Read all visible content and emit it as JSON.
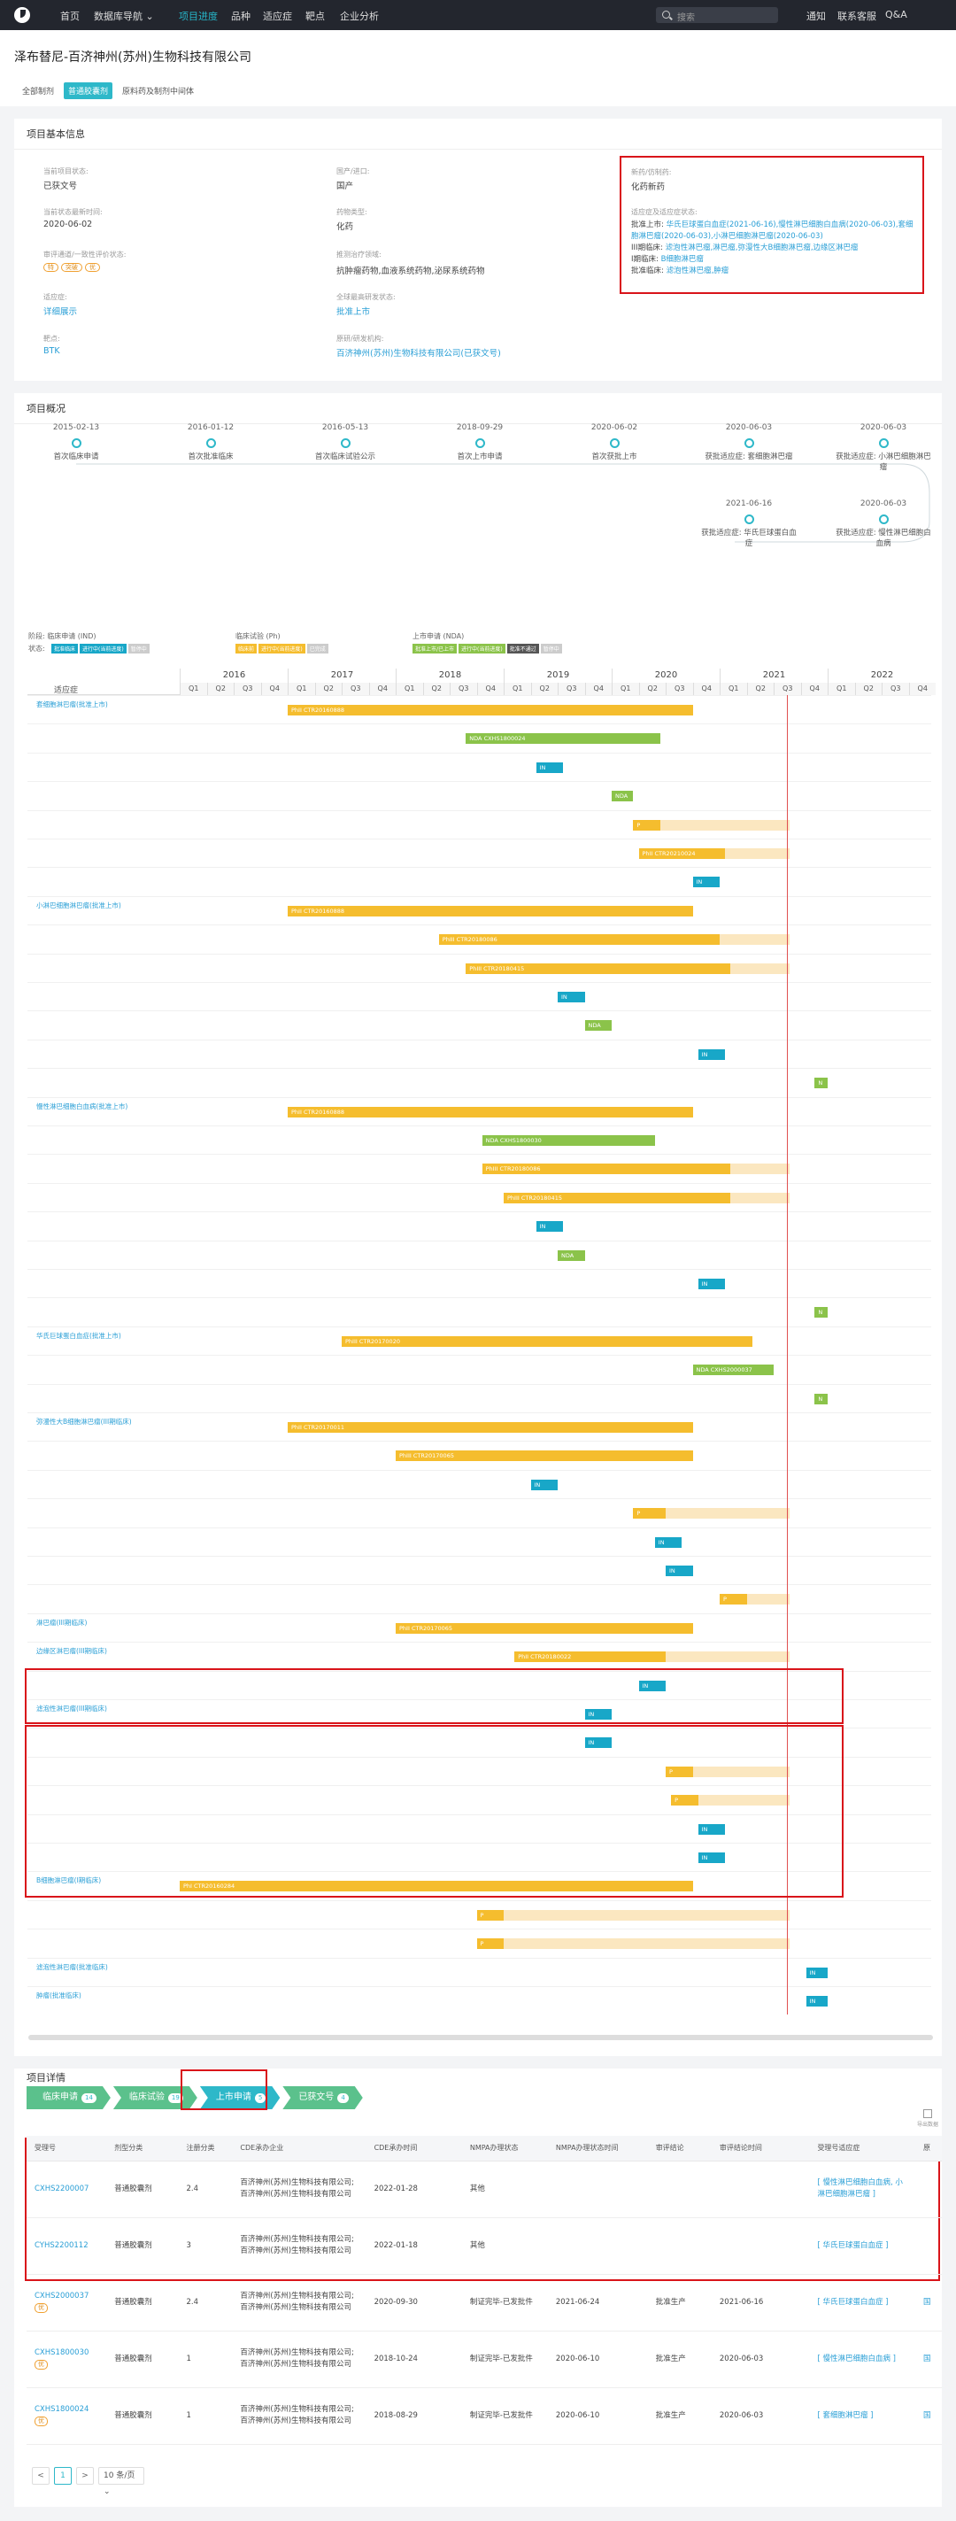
{
  "nav": {
    "items": [
      "首页",
      "数据库导航",
      "项目进度",
      "品种",
      "适应症",
      "靶点",
      "企业分析"
    ],
    "search_placeholder": "搜索",
    "right": [
      "通知",
      "联系客服",
      "Q&A"
    ]
  },
  "title": "泽布替尼-百济神州(苏州)生物科技有限公司",
  "tabs": [
    "全部制剂",
    "普通胶囊剂",
    "原料药及制剂中间体"
  ],
  "basic": {
    "heading": "项目基本信息",
    "f": [
      {
        "l": "当前项目状态:",
        "v": "已获文号"
      },
      {
        "l": "国产/进口:",
        "v": "国产"
      },
      {
        "l": "当前状态最新时间:",
        "v": "2020-06-02"
      },
      {
        "l": "药物类型:",
        "v": "化药"
      },
      {
        "l": "审评通道/一致性评价状态:",
        "tags": [
          "特",
          "突破",
          "优"
        ]
      },
      {
        "l": "推测治疗领域:",
        "v": "抗肿瘤药物,血液系统药物,泌尿系统药物"
      },
      {
        "l": "适应症:",
        "v": "详细展示"
      },
      {
        "l": "全球最高研发状态:",
        "v": "批准上市"
      },
      {
        "l": "靶点:",
        "v": "BTK"
      },
      {
        "l": "原研/研发机构:",
        "v": "百济神州(苏州)生物科技有限公司(已获文号)"
      }
    ],
    "right": {
      "l1": "新药/仿制药:",
      "v1": "化药新药",
      "l2": "适应症及适应症状态:",
      "lines": [
        [
          "批准上市:",
          "华氏巨球蛋白血症(2021-06-16),慢性淋巴细胞白血病(2020-06-03),套细胞淋巴瘤(2020-06-03),小淋巴细胞淋巴瘤(2020-06-03)"
        ],
        [
          "III期临床:",
          "滤泡性淋巴瘤,淋巴瘤,弥漫性大B细胞淋巴瘤,边缘区淋巴瘤"
        ],
        [
          "I期临床:",
          "B细胞淋巴瘤"
        ],
        [
          "批准临床:",
          "滤泡性淋巴瘤,肿瘤"
        ]
      ]
    }
  },
  "overview": {
    "heading": "项目概况",
    "timeline": [
      {
        "date": "2015-02-13",
        "label": "首次临床申请"
      },
      {
        "date": "2016-01-12",
        "label": "首次批准临床"
      },
      {
        "date": "2016-05-13",
        "label": "首次临床试验公示"
      },
      {
        "date": "2018-09-29",
        "label": "首次上市申请"
      },
      {
        "date": "2020-06-02",
        "label": "首次获批上市"
      },
      {
        "date": "2020-06-03",
        "label": "获批适应症: 套细胞淋巴瘤"
      },
      {
        "date": "2020-06-03",
        "label": "获批适应症: 小淋巴细胞淋巴瘤"
      },
      {
        "date": "2021-06-16",
        "label": "获批适应症: 华氏巨球蛋白血症"
      },
      {
        "date": "2020-06-03",
        "label": "获批适应症: 慢性淋巴细胞白血病"
      }
    ],
    "legend": {
      "heads": [
        "阶段: 临床申请 (IND)",
        "临床试验 (Ph)",
        "上市申请 (NDA)"
      ],
      "state": "状态:",
      "ind": [
        "批准临床",
        "进行中(当前进度)",
        "暂停中"
      ],
      "ph": [
        "临床前",
        "进行中(当前进度)",
        "已完成"
      ],
      "nda": [
        "批准上市/已上市",
        "进行中(当前进度)",
        "批准不通过",
        "暂停中"
      ]
    },
    "gantt": {
      "col": "适应症",
      "years": [
        "2016",
        "2017",
        "2018",
        "2019",
        "2020",
        "2021",
        "2022"
      ],
      "q": [
        "Q1",
        "Q2",
        "Q3",
        "Q4"
      ],
      "rows": [
        {
          "ind": "套细胞淋巴瘤(批准上市)",
          "bar": [
            "ph",
            2017.0,
            2020.75,
            "PhII CTR20160888"
          ]
        },
        {
          "bar": [
            "nda",
            2018.65,
            2020.45,
            "NDA CXHS1800024"
          ]
        },
        {
          "bar": [
            "in",
            2019.3,
            2019.55,
            "IN"
          ]
        },
        {
          "bar": [
            "nda",
            2020.0,
            2020.2,
            "NDA"
          ]
        },
        {
          "bar": [
            "p",
            2020.2,
            2020.45,
            "P"
          ],
          "ext": 2020.45
        },
        {
          "bar": [
            "ph",
            2020.25,
            2021.05,
            "PhII CTR20210024"
          ],
          "ext": 2021.05
        },
        {
          "bar": [
            "in",
            2020.75,
            2021.0,
            "IN"
          ]
        },
        {
          "ind": "小淋巴细胞淋巴瘤(批准上市)",
          "bar": [
            "ph",
            2017.0,
            2020.75,
            "PhII CTR20160888"
          ]
        },
        {
          "bar": [
            "ph",
            2018.4,
            2021.0,
            "PhIII CTR20180086"
          ],
          "ext": 2021.0
        },
        {
          "bar": [
            "ph",
            2018.65,
            2021.1,
            "PhIII CTR20180415"
          ],
          "ext": 2021.1
        },
        {
          "bar": [
            "in",
            2019.5,
            2019.75,
            "IN"
          ]
        },
        {
          "bar": [
            "nda",
            2019.75,
            2020.0,
            "NDA"
          ]
        },
        {
          "bar": [
            "in",
            2020.8,
            2021.05,
            "IN"
          ]
        },
        {
          "bar": [
            "nda",
            2021.88,
            2022.0,
            "N"
          ]
        },
        {
          "ind": "慢性淋巴细胞白血病(批准上市)",
          "bar": [
            "ph",
            2017.0,
            2020.75,
            "PhII CTR20160888"
          ]
        },
        {
          "bar": [
            "nda",
            2018.8,
            2020.4,
            "NDA CXHS1800030"
          ]
        },
        {
          "bar": [
            "ph",
            2018.8,
            2021.1,
            "PhIII CTR20180086"
          ],
          "ext": 2021.1
        },
        {
          "bar": [
            "ph",
            2019.0,
            2021.1,
            "PhIII CTR20180415"
          ],
          "ext": 2021.1
        },
        {
          "bar": [
            "in",
            2019.3,
            2019.55,
            "IN"
          ]
        },
        {
          "bar": [
            "nda",
            2019.5,
            2019.75,
            "NDA"
          ]
        },
        {
          "bar": [
            "in",
            2020.8,
            2021.05,
            "IN"
          ]
        },
        {
          "bar": [
            "nda",
            2021.88,
            2022.0,
            "N"
          ]
        },
        {
          "ind": "华氏巨球蛋白血症(批准上市)",
          "bar": [
            "ph",
            2017.5,
            2021.3,
            "PhIII CTR20170020"
          ]
        },
        {
          "bar": [
            "nda",
            2020.75,
            2021.5,
            "NDA CXHS2000037"
          ]
        },
        {
          "bar": [
            "nda",
            2021.88,
            2022.0,
            "N"
          ]
        },
        {
          "ind": "弥漫性大B细胞淋巴瘤(III期临床)",
          "bar": [
            "ph",
            2017.0,
            2020.75,
            "PhII CTR20170011"
          ]
        },
        {
          "bar": [
            "ph",
            2018.0,
            2020.75,
            "PhIII CTR20170065"
          ]
        },
        {
          "bar": [
            "in",
            2019.25,
            2019.5,
            "IN"
          ]
        },
        {
          "bar": [
            "p",
            2020.2,
            2020.5,
            "P"
          ],
          "ext": 2020.5
        },
        {
          "bar": [
            "in",
            2020.4,
            2020.65,
            "IN"
          ]
        },
        {
          "bar": [
            "in",
            2020.5,
            2020.75,
            "IN"
          ]
        },
        {
          "bar": [
            "p",
            2021.0,
            2021.25,
            "P"
          ],
          "ext": 2021.25
        },
        {
          "ind": "淋巴瘤(III期临床)",
          "bar": [
            "ph",
            2018.0,
            2020.75,
            "PhII CTR20170065"
          ]
        },
        {
          "ind": "边缘区淋巴瘤(III期临床)",
          "bar": [
            "ph",
            2019.1,
            2020.5,
            "PhII CTR20180022"
          ],
          "ext": 2020.5
        },
        {
          "bar": [
            "in",
            2020.25,
            2020.5,
            "IN"
          ]
        },
        {
          "ind": "滤泡性淋巴瘤(III期临床)",
          "bar": [
            "in",
            2019.75,
            2020.0,
            "IN"
          ]
        },
        {
          "bar": [
            "in",
            2019.75,
            2020.0,
            "IN"
          ]
        },
        {
          "bar": [
            "p",
            2020.5,
            2020.75,
            "P"
          ],
          "ext": 2020.75
        },
        {
          "bar": [
            "p",
            2020.55,
            2020.8,
            "P"
          ],
          "ext": 2020.8
        },
        {
          "bar": [
            "in",
            2020.8,
            2021.05,
            "IN"
          ]
        },
        {
          "bar": [
            "in",
            2020.8,
            2021.05,
            "IN"
          ]
        },
        {
          "ind": "B细胞淋巴瘤(I期临床)",
          "bar": [
            "ph",
            2016.0,
            2020.75,
            "PhI CTR20160284"
          ]
        },
        {
          "bar": [
            "p",
            2018.75,
            2019.0,
            "P"
          ],
          "ext": 2019.0
        },
        {
          "bar": [
            "p",
            2018.75,
            2019.0,
            "P"
          ],
          "ext": 2019.0
        },
        {
          "ind": "滤泡性淋巴瘤(批准临床)",
          "bar": [
            "in",
            2021.8,
            2022.0,
            "IN"
          ]
        },
        {
          "ind": "肿瘤(批准临床)",
          "bar": [
            "in",
            2021.8,
            2022.0,
            "IN"
          ]
        }
      ]
    }
  },
  "details": {
    "heading": "项目详情",
    "steps": [
      [
        "临床申请",
        "14"
      ],
      [
        "临床试验",
        "19"
      ],
      [
        "上市申请",
        "5"
      ],
      [
        "已获文号",
        "4"
      ]
    ],
    "export": "导出数据",
    "cols": [
      "受理号",
      "剂型分类",
      "注册分类",
      "CDE承办企业",
      "CDE承办时间",
      "NMPA办理状态",
      "NMPA办理状态时间",
      "审评结论",
      "审评结论时间",
      "受理号适应症",
      "原"
    ],
    "rows": [
      {
        "no": "CXHS2200007",
        "badge": "",
        "form": "普通胶囊剂",
        "cls": "2.4",
        "co": "百济神州(苏州)生物科技有限公司;百济神州(苏州)生物科技有限公司",
        "t": "2022-01-28",
        "st": "其他",
        "st_t": "",
        "res": "",
        "res_t": "",
        "ind": "[ 慢性淋巴细胞白血病, 小淋巴细胞淋巴瘤 ]",
        "o": ""
      },
      {
        "no": "CYHS2200112",
        "badge": "",
        "form": "普通胶囊剂",
        "cls": "3",
        "co": "百济神州(苏州)生物科技有限公司;百济神州(苏州)生物科技有限公司",
        "t": "2022-01-18",
        "st": "其他",
        "st_t": "",
        "res": "",
        "res_t": "",
        "ind": "[ 华氏巨球蛋白血症 ]",
        "o": ""
      },
      {
        "no": "CXHS2000037",
        "badge": "优",
        "form": "普通胶囊剂",
        "cls": "2.4",
        "co": "百济神州(苏州)生物科技有限公司;百济神州(苏州)生物科技有限公司",
        "t": "2020-09-30",
        "st": "制证完毕-已发批件",
        "st_t": "2021-06-24",
        "res": "批准生产",
        "res_t": "2021-06-16",
        "ind": "[ 华氏巨球蛋白血症 ]",
        "o": "国"
      },
      {
        "no": "CXHS1800030",
        "badge": "优",
        "form": "普通胶囊剂",
        "cls": "1",
        "co": "百济神州(苏州)生物科技有限公司;百济神州(苏州)生物科技有限公司",
        "t": "2018-10-24",
        "st": "制证完毕-已发批件",
        "st_t": "2020-06-10",
        "res": "批准生产",
        "res_t": "2020-06-03",
        "ind": "[ 慢性淋巴细胞白血病 ]",
        "o": "国"
      },
      {
        "no": "CXHS1800024",
        "badge": "优",
        "form": "普通胶囊剂",
        "cls": "1",
        "co": "百济神州(苏州)生物科技有限公司;百济神州(苏州)生物科技有限公司",
        "t": "2018-08-29",
        "st": "制证完毕-已发批件",
        "st_t": "2020-06-10",
        "res": "批准生产",
        "res_t": "2020-06-03",
        "ind": "[ 套细胞淋巴瘤 ]",
        "o": "国"
      }
    ],
    "pager": {
      "prev": "<",
      "page": "1",
      "next": ">",
      "size": "10 条/页"
    }
  }
}
